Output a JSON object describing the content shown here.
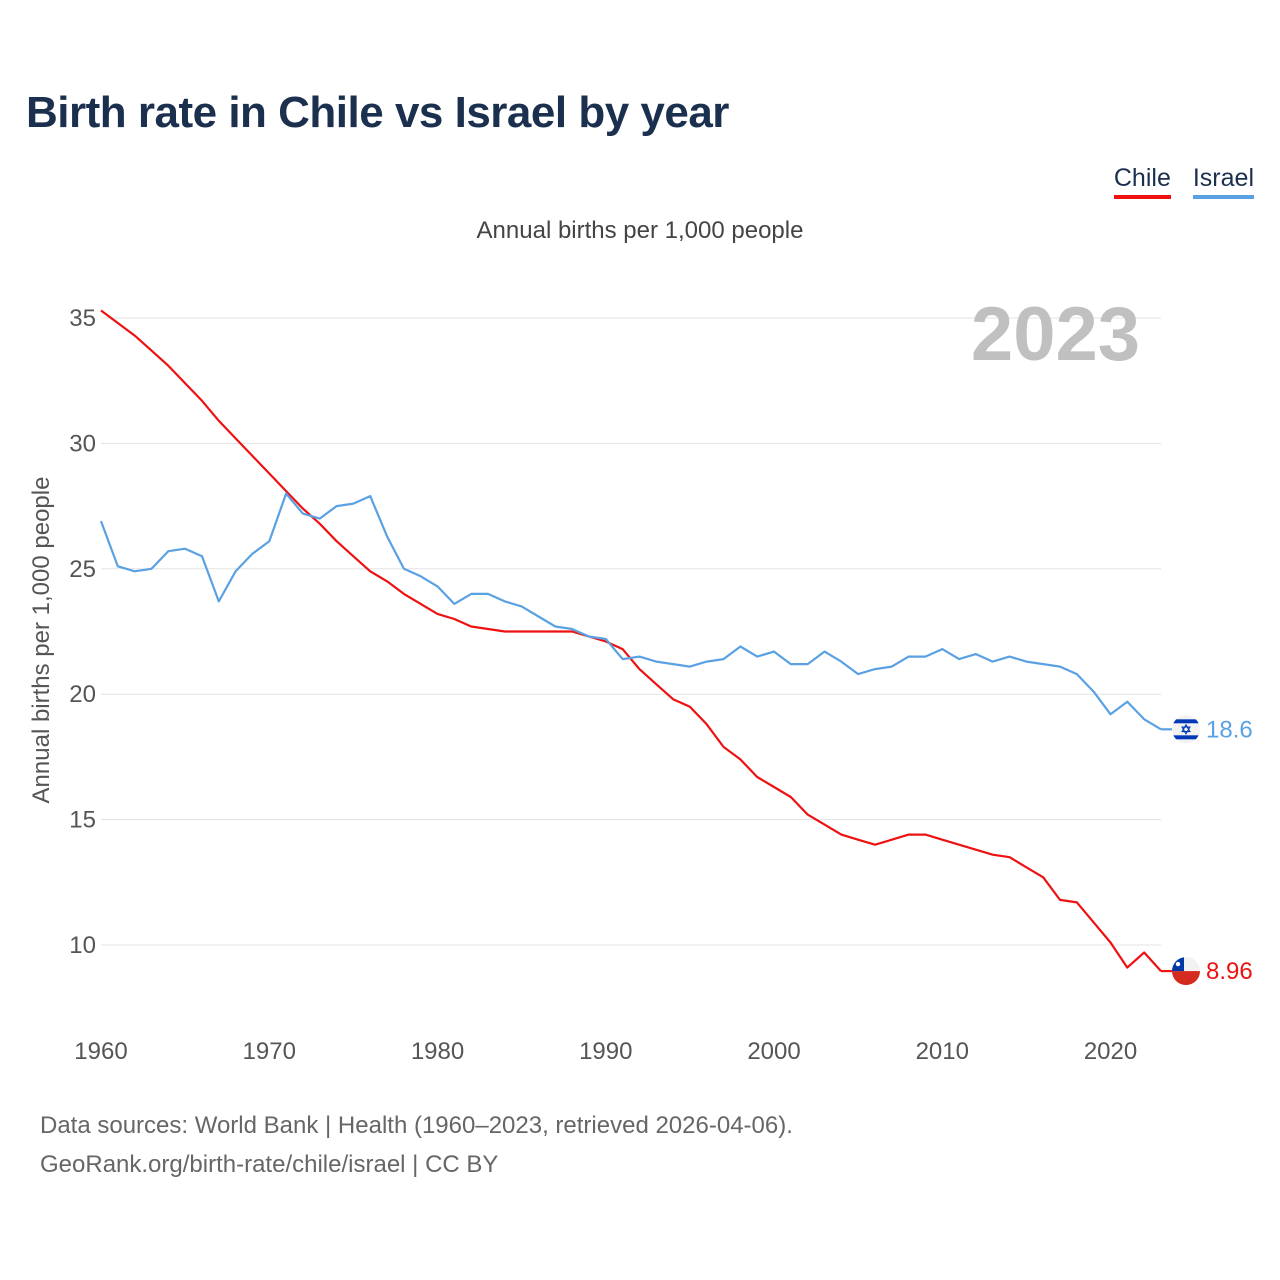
{
  "title": "Birth rate in Chile vs Israel by year",
  "subtitle": "Annual births per 1,000 people",
  "legend": [
    {
      "name": "Chile",
      "color": "#ee1111"
    },
    {
      "name": "Israel",
      "color": "#5aa1e3"
    }
  ],
  "footer": {
    "line1": "Data sources: World Bank | Health (1960–2023, retrieved 2026-04-06).",
    "line2": "GeoRank.org/birth-rate/chile/israel | CC BY"
  },
  "chart_data": {
    "type": "line",
    "title": "Birth rate in Chile vs Israel by year",
    "ylabel": "Annual births per 1,000 people",
    "xlabel": "",
    "year_label": "2023",
    "x_range": [
      1960,
      2023
    ],
    "ylim": [
      7.5,
      36.5
    ],
    "yticks": [
      10,
      15,
      20,
      25,
      30,
      35
    ],
    "xticks": [
      1960,
      1970,
      1980,
      1990,
      2000,
      2010,
      2020
    ],
    "grid": true,
    "x": [
      1960,
      1961,
      1962,
      1963,
      1964,
      1965,
      1966,
      1967,
      1968,
      1969,
      1970,
      1971,
      1972,
      1973,
      1974,
      1975,
      1976,
      1977,
      1978,
      1979,
      1980,
      1981,
      1982,
      1983,
      1984,
      1985,
      1986,
      1987,
      1988,
      1989,
      1990,
      1991,
      1992,
      1993,
      1994,
      1995,
      1996,
      1997,
      1998,
      1999,
      2000,
      2001,
      2002,
      2003,
      2004,
      2005,
      2006,
      2007,
      2008,
      2009,
      2010,
      2011,
      2012,
      2013,
      2014,
      2015,
      2016,
      2017,
      2018,
      2019,
      2020,
      2021,
      2022,
      2023
    ],
    "series": [
      {
        "name": "Chile",
        "color": "#ee1111",
        "end_label": "8.96",
        "values": [
          35.3,
          34.8,
          34.3,
          33.7,
          33.1,
          32.4,
          31.7,
          30.9,
          30.2,
          29.5,
          28.8,
          28.1,
          27.4,
          26.8,
          26.1,
          25.5,
          24.9,
          24.5,
          24.0,
          23.6,
          23.2,
          23.0,
          22.7,
          22.6,
          22.5,
          22.5,
          22.5,
          22.5,
          22.5,
          22.3,
          22.1,
          21.8,
          21.0,
          20.4,
          19.8,
          19.5,
          18.8,
          17.9,
          17.4,
          16.7,
          16.3,
          15.9,
          15.2,
          14.8,
          14.4,
          14.2,
          14.0,
          14.2,
          14.4,
          14.4,
          14.2,
          14.0,
          13.8,
          13.6,
          13.5,
          13.1,
          12.7,
          11.8,
          11.7,
          10.9,
          10.1,
          9.1,
          9.7,
          8.96
        ]
      },
      {
        "name": "Israel",
        "color": "#5aa1e3",
        "end_label": "18.6",
        "values": [
          26.9,
          25.1,
          24.9,
          25.0,
          25.7,
          25.8,
          25.5,
          23.7,
          24.9,
          25.6,
          26.1,
          28.0,
          27.2,
          27.0,
          27.5,
          27.6,
          27.9,
          26.3,
          25.0,
          24.7,
          24.3,
          23.6,
          24.0,
          24.0,
          23.7,
          23.5,
          23.1,
          22.7,
          22.6,
          22.3,
          22.2,
          21.4,
          21.5,
          21.3,
          21.2,
          21.1,
          21.3,
          21.4,
          21.9,
          21.5,
          21.7,
          21.2,
          21.2,
          21.7,
          21.3,
          20.8,
          21.0,
          21.1,
          21.5,
          21.5,
          21.8,
          21.4,
          21.6,
          21.3,
          21.5,
          21.3,
          21.2,
          21.1,
          20.8,
          20.1,
          19.2,
          19.7,
          19.0,
          18.6
        ]
      }
    ]
  }
}
